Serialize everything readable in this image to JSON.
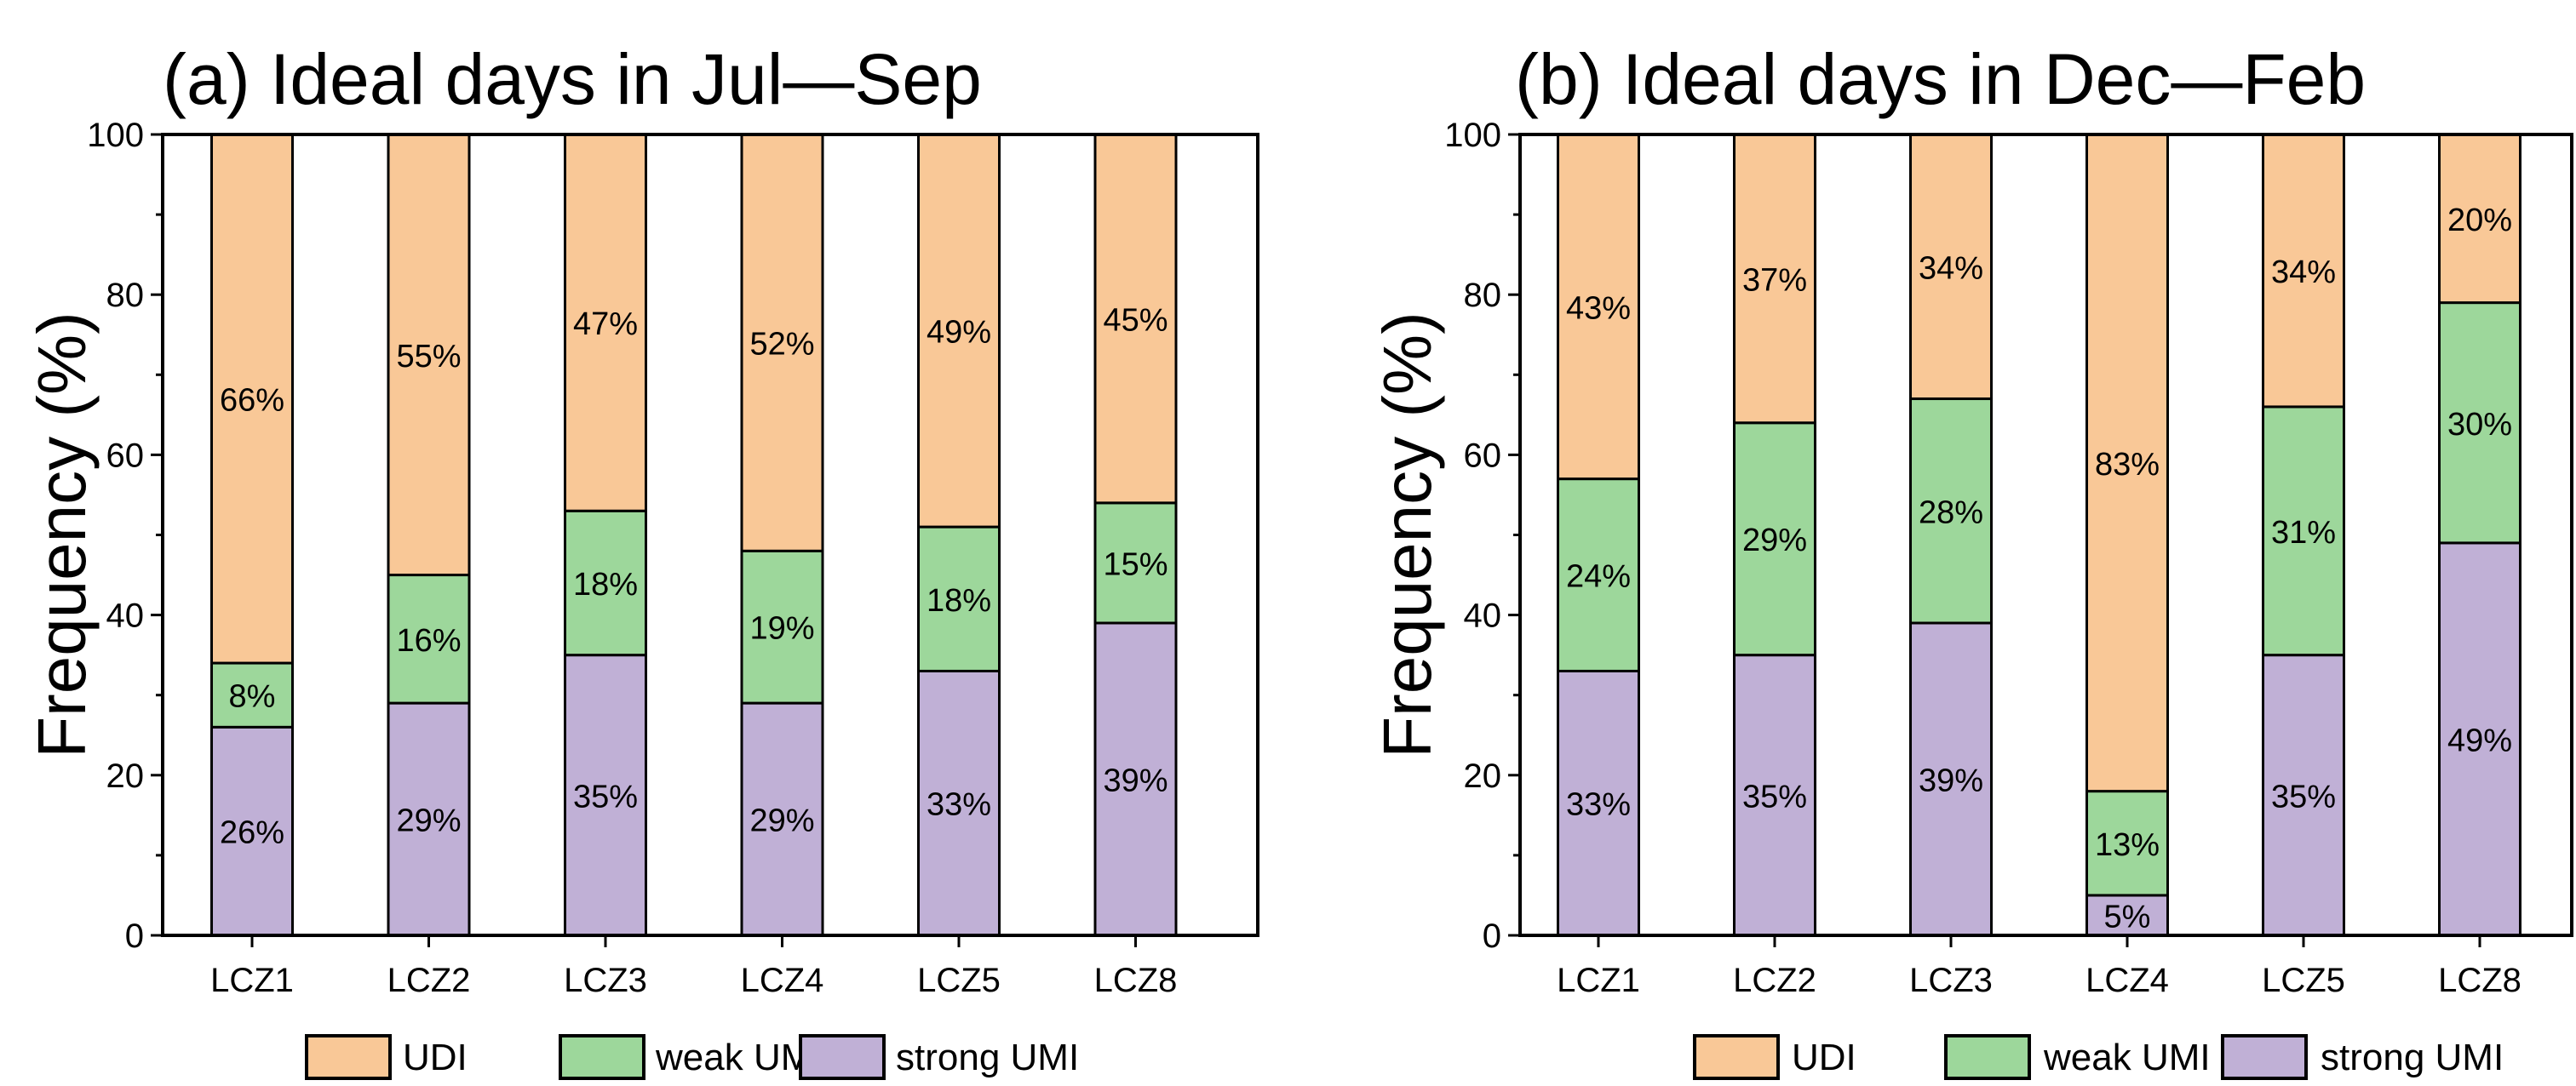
{
  "colors": {
    "UDI": "#F9C897",
    "weak UMI": "#9DD79B",
    "strong UMI": "#C0B0D6",
    "axis": "#000000"
  },
  "chart_data": [
    {
      "type": "bar",
      "stacked": true,
      "title": "(a) Ideal days in Jul—Sep",
      "xlabel": "",
      "ylabel": "Frequency (%)",
      "ylim": [
        0,
        100
      ],
      "yticks": [
        0,
        20,
        40,
        60,
        80,
        100
      ],
      "categories": [
        "LCZ1",
        "LCZ2",
        "LCZ3",
        "LCZ4",
        "LCZ5",
        "LCZ8"
      ],
      "series": [
        {
          "name": "strong UMI",
          "values": [
            26,
            29,
            35,
            29,
            33,
            39
          ],
          "labels": [
            "26%",
            "29%",
            "35%",
            "29%",
            "33%",
            "39%"
          ]
        },
        {
          "name": "weak UMI",
          "values": [
            8,
            16,
            18,
            19,
            18,
            15
          ],
          "labels": [
            "8%",
            "16%",
            "18%",
            "19%",
            "18%",
            "15%"
          ]
        },
        {
          "name": "UDI",
          "values": [
            66,
            55,
            47,
            52,
            49,
            45
          ],
          "labels": [
            "66%",
            "55%",
            "47%",
            "52%",
            "49%",
            "45%"
          ]
        }
      ],
      "legend": [
        "UDI",
        "weak UMI",
        "strong UMI"
      ],
      "legend_placement": "bottom"
    },
    {
      "type": "bar",
      "stacked": true,
      "title": "(b) Ideal days in Dec—Feb",
      "xlabel": "",
      "ylabel": "Frequency (%)",
      "ylim": [
        0,
        100
      ],
      "yticks": [
        0,
        20,
        40,
        60,
        80,
        100
      ],
      "categories": [
        "LCZ1",
        "LCZ2",
        "LCZ3",
        "LCZ4",
        "LCZ5",
        "LCZ8"
      ],
      "series": [
        {
          "name": "strong UMI",
          "values": [
            33,
            35,
            39,
            5,
            35,
            49
          ],
          "labels": [
            "33%",
            "35%",
            "39%",
            "5%",
            "35%",
            "49%"
          ]
        },
        {
          "name": "weak UMI",
          "values": [
            24,
            29,
            28,
            13,
            31,
            30
          ],
          "labels": [
            "24%",
            "29%",
            "28%",
            "13%",
            "31%",
            "30%"
          ]
        },
        {
          "name": "UDI",
          "values": [
            43,
            37,
            34,
            83,
            34,
            20
          ],
          "labels": [
            "43%",
            "37%",
            "34%",
            "83%",
            "34%",
            "20%"
          ]
        }
      ],
      "legend": [
        "UDI",
        "weak UMI",
        "strong UMI"
      ],
      "legend_placement": "bottom"
    }
  ]
}
